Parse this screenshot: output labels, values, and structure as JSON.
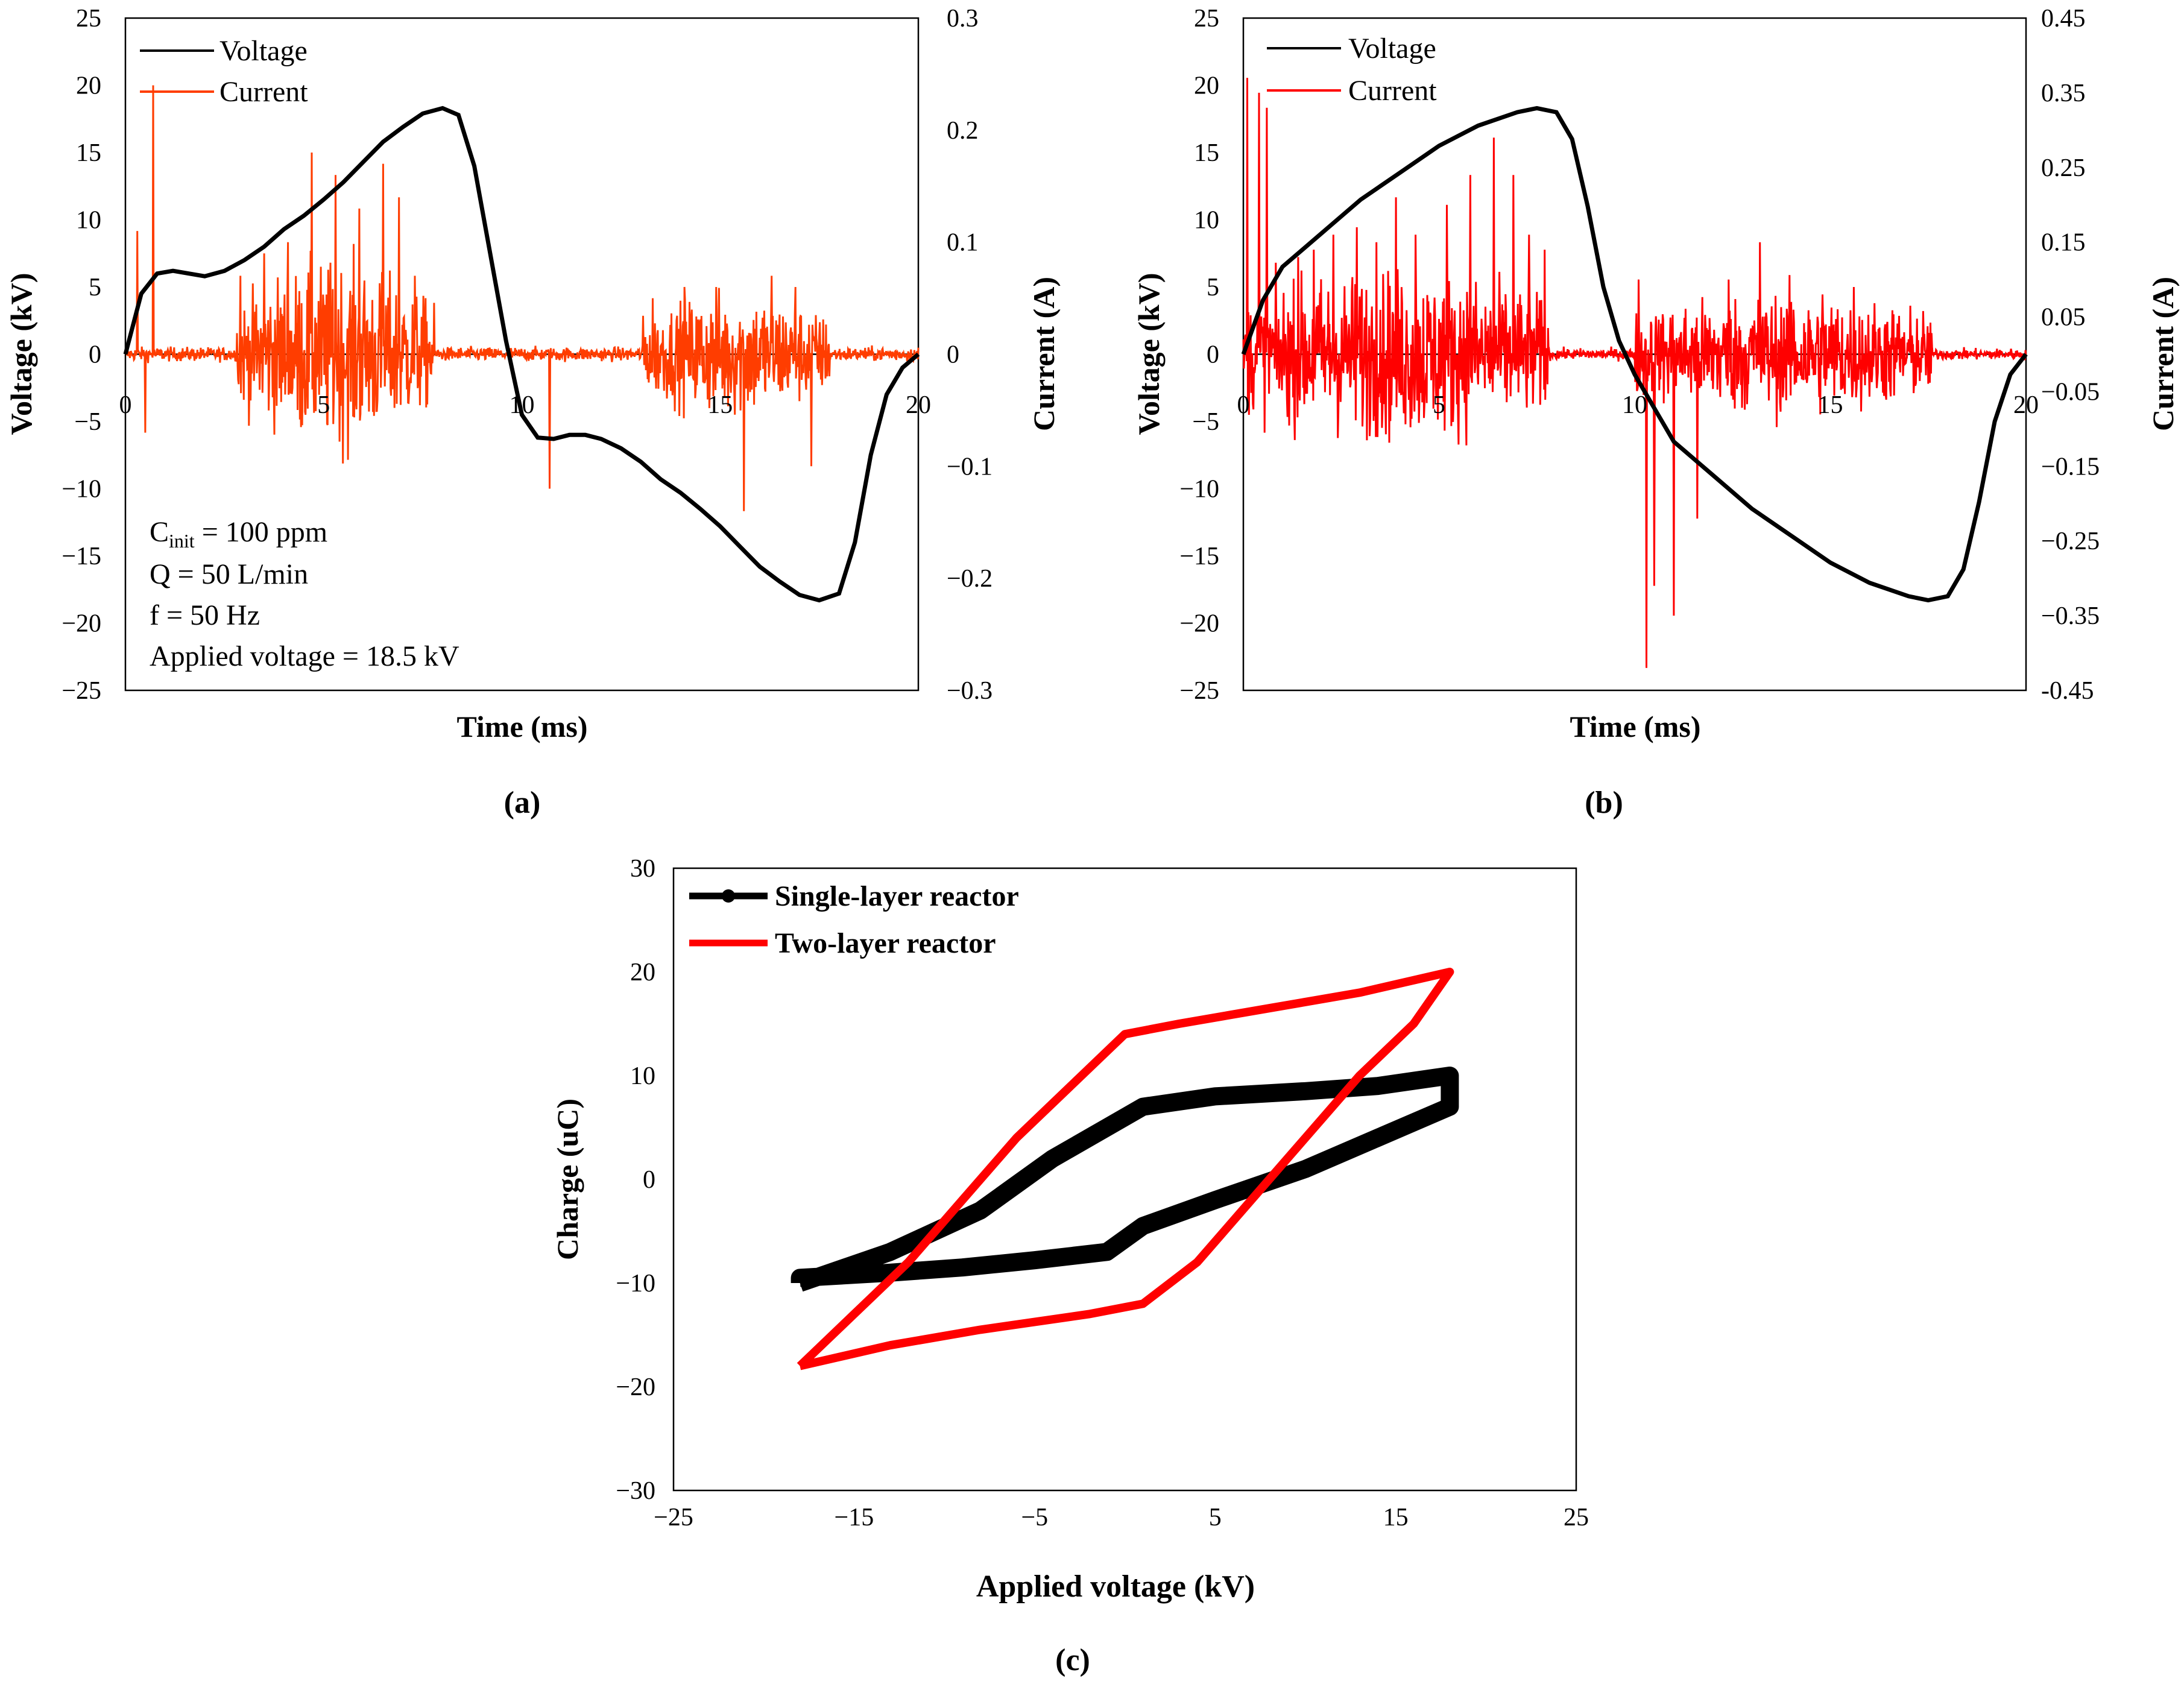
{
  "chart_data": [
    {
      "id": "a",
      "panel_label": "(a)",
      "type": "line",
      "title": "",
      "xlabel": "Time (ms)",
      "ylabel": "Voltage (kV)",
      "y2label": "Current (A)",
      "xlim": [
        0,
        20
      ],
      "ylim": [
        -25,
        25
      ],
      "y2lim": [
        -0.3,
        0.3
      ],
      "x_ticks": [
        "0",
        "5",
        "10",
        "15",
        "20"
      ],
      "y_ticks": [
        "25",
        "20",
        "15",
        "10",
        "5",
        "0",
        "−5",
        "−10",
        "−15",
        "−20",
        "−25"
      ],
      "y2_ticks": [
        "0.3",
        "0.2",
        "0.1",
        "0",
        "−0.1",
        "−0.2",
        "−0.3"
      ],
      "legend": [
        {
          "name": "Voltage",
          "color": "#000000"
        },
        {
          "name": "Current",
          "color": "#ff3d00"
        }
      ],
      "annotations": {
        "cinit_main": "C",
        "cinit_sub": "init",
        "cinit_rest": " = 100 ppm",
        "flow": "Q = 50 L/min",
        "freq": "f = 50 Hz",
        "applied": "Applied  voltage = 18.5 kV"
      },
      "series": [
        {
          "name": "Voltage",
          "axis": "left",
          "x": [
            0,
            0.4,
            0.8,
            1.2,
            1.6,
            2.0,
            2.5,
            3.0,
            3.5,
            4.0,
            4.5,
            5.0,
            5.5,
            6.0,
            6.5,
            7.0,
            7.5,
            8.0,
            8.4,
            8.8,
            9.2,
            9.6,
            10.0,
            10.4,
            10.8,
            11.2,
            11.6,
            12.0,
            12.5,
            13.0,
            13.5,
            14.0,
            14.5,
            15.0,
            15.5,
            16.0,
            16.5,
            17.0,
            17.5,
            18.0,
            18.4,
            18.8,
            19.2,
            19.6,
            20.0
          ],
          "values": [
            0,
            4.5,
            6.0,
            6.2,
            6.0,
            5.8,
            6.2,
            7.0,
            8.0,
            9.3,
            10.3,
            11.5,
            12.8,
            14.3,
            15.8,
            16.9,
            17.9,
            18.3,
            17.8,
            14.0,
            7.5,
            1.0,
            -4.5,
            -6.2,
            -6.3,
            -6.0,
            -6.0,
            -6.3,
            -7.0,
            -8.0,
            -9.3,
            -10.3,
            -11.5,
            -12.8,
            -14.3,
            -15.8,
            -16.9,
            -17.9,
            -18.3,
            -17.8,
            -14.0,
            -7.5,
            -3.0,
            -1.0,
            0
          ]
        },
        {
          "name": "Current",
          "axis": "right",
          "x": [
            0.7,
            0.5,
            0.3,
            2.9,
            3.5,
            4.1,
            4.7,
            5.3,
            5.9,
            6.5,
            6.9,
            7.3,
            10.7,
            13.3,
            14.1,
            14.9,
            15.6,
            16.3,
            16.9,
            17.3
          ],
          "values": [
            0.24,
            -0.07,
            0.11,
            0.07,
            0.09,
            0.1,
            0.18,
            0.16,
            0.13,
            0.17,
            0.14,
            0.07,
            -0.12,
            0.05,
            0.06,
            0.06,
            -0.14,
            0.07,
            0.06,
            -0.1
          ]
        }
      ]
    },
    {
      "id": "b",
      "panel_label": "(b)",
      "type": "line",
      "title": "",
      "xlabel": "Time (ms)",
      "ylabel": "Voltage (kV)",
      "y2label": "Current (A)",
      "xlim": [
        0,
        20
      ],
      "ylim": [
        -25,
        25
      ],
      "y2lim": [
        -0.45,
        0.45
      ],
      "x_ticks": [
        "0",
        "5",
        "10",
        "15",
        "20"
      ],
      "y_ticks": [
        "25",
        "20",
        "15",
        "10",
        "5",
        "0",
        "−5",
        "−10",
        "−15",
        "−20",
        "−25"
      ],
      "y2_ticks": [
        "0.45",
        "0.35",
        "0.25",
        "0.15",
        "0.05",
        "−0.05",
        "−0.15",
        "−0.25",
        "−0.35",
        "-0.45"
      ],
      "legend": [
        {
          "name": "Voltage",
          "color": "#000000"
        },
        {
          "name": "Current",
          "color": "#ff0000"
        }
      ],
      "series": [
        {
          "name": "Voltage",
          "axis": "left",
          "x": [
            0,
            0.5,
            1.0,
            2.0,
            3.0,
            4.0,
            5.0,
            6.0,
            7.0,
            7.5,
            8.0,
            8.4,
            8.8,
            9.2,
            9.6,
            10.0,
            10.5,
            11.0,
            12.0,
            13.0,
            14.0,
            15.0,
            16.0,
            17.0,
            17.5,
            18.0,
            18.4,
            18.8,
            19.2,
            19.6,
            20.0
          ],
          "values": [
            0,
            4.0,
            6.5,
            9.0,
            11.5,
            13.5,
            15.5,
            17.0,
            18.0,
            18.3,
            18.0,
            16.0,
            11.0,
            5.0,
            1.0,
            -1.5,
            -4.0,
            -6.5,
            -9.0,
            -11.5,
            -13.5,
            -15.5,
            -17.0,
            -18.0,
            -18.3,
            -18.0,
            -16.0,
            -11.0,
            -5.0,
            -1.5,
            0
          ]
        },
        {
          "name": "Current",
          "axis": "right",
          "x": [
            0.1,
            0.4,
            0.6,
            1.4,
            1.8,
            2.3,
            2.9,
            3.4,
            3.9,
            4.4,
            5.2,
            5.8,
            6.4,
            6.9,
            7.3,
            7.7,
            10.1,
            10.3,
            10.5,
            11.0,
            11.6,
            12.4,
            13.2,
            14.0,
            14.8,
            15.6,
            16.4,
            17.0,
            17.6
          ],
          "values": [
            0.37,
            0.35,
            0.33,
            0.13,
            0.14,
            0.16,
            0.17,
            0.15,
            0.21,
            0.16,
            0.2,
            0.24,
            0.29,
            0.24,
            0.16,
            0.14,
            0.1,
            -0.42,
            -0.31,
            -0.35,
            -0.22,
            0.1,
            0.15,
            0.07,
            0.08,
            0.09,
            0.04,
            0.02,
            0.01
          ]
        }
      ]
    },
    {
      "id": "c",
      "panel_label": "(c)",
      "type": "line",
      "title": "",
      "xlabel": "Applied voltage (kV)",
      "ylabel": "Charge (uC)",
      "xlim": [
        -25,
        25
      ],
      "ylim": [
        -30,
        30
      ],
      "x_ticks": [
        "−25",
        "−15",
        "−5",
        "5",
        "15",
        "25"
      ],
      "y_ticks": [
        "30",
        "20",
        "10",
        "0",
        "−10",
        "−20",
        "−30"
      ],
      "legend": [
        {
          "name": "Single-layer reactor",
          "color": "#000000"
        },
        {
          "name": "Two-layer reactor",
          "color": "#ff0000"
        }
      ],
      "series": [
        {
          "name": "Single-layer reactor",
          "x": [
            -18,
            -13,
            -8,
            -4,
            -1,
            1,
            5,
            10,
            14,
            18,
            18,
            14,
            10,
            5,
            1,
            -1,
            -5,
            -9,
            -13,
            -18,
            -18
          ],
          "values": [
            -10,
            -7,
            -3,
            2,
            5,
            7,
            8,
            8.5,
            9,
            10,
            7,
            4,
            1,
            -2,
            -4.5,
            -7,
            -7.8,
            -8.5,
            -9,
            -9.5,
            -10
          ]
        },
        {
          "name": "Two-layer reactor",
          "x": [
            -18,
            -15,
            -12,
            -9,
            -6,
            -3,
            0,
            3,
            8,
            13,
            18,
            16,
            13,
            10,
            7,
            4,
            1,
            -2,
            -8,
            -13,
            -18
          ],
          "values": [
            -18,
            -13,
            -8,
            -2,
            4,
            9,
            14,
            15,
            16.5,
            18,
            20,
            15,
            10,
            4,
            -2,
            -8,
            -12,
            -13,
            -14.5,
            -16,
            -18
          ]
        }
      ]
    }
  ]
}
